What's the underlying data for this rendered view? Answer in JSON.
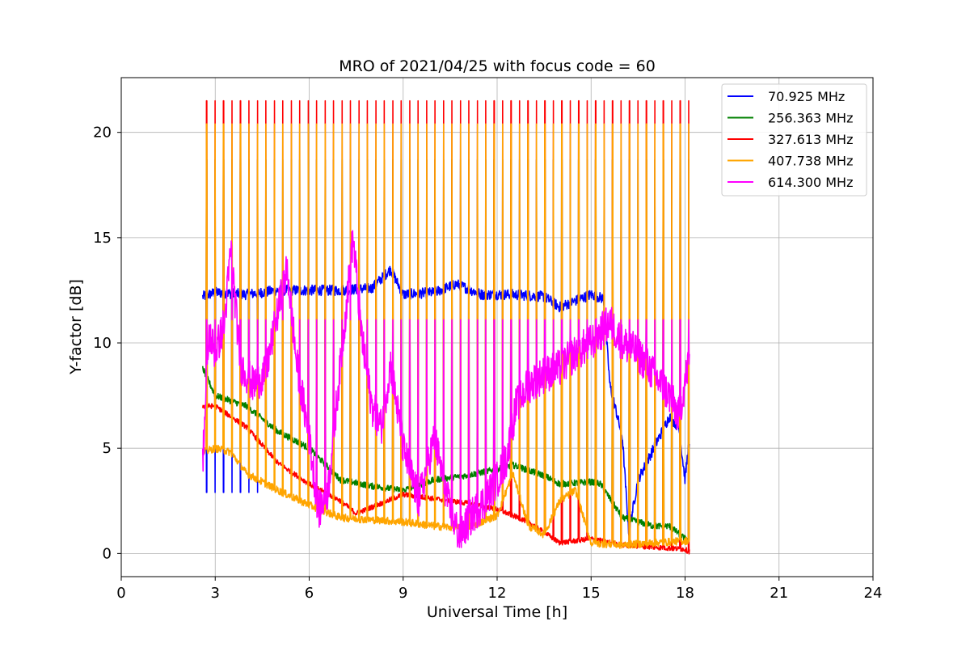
{
  "chart_data": {
    "type": "line",
    "title": "MRO of 2021/04/25 with focus code = 60",
    "xlabel": "Universal Time [h]",
    "ylabel": "Y-factor [dB]",
    "xlim": [
      0,
      24
    ],
    "ylim": [
      -1.1,
      22.6
    ],
    "xticks": [
      0,
      3,
      6,
      9,
      12,
      15,
      18,
      21,
      24
    ],
    "yticks": [
      0,
      5,
      10,
      15,
      20
    ],
    "grid": true,
    "legend_position": "top-right",
    "data_start_h": 2.6,
    "data_end_h": 18.15,
    "calibration_spike_period_h": 0.27,
    "series": [
      {
        "name": "70.925 MHz",
        "color": "#0000ff",
        "x": [
          2.6,
          3.0,
          4.0,
          5.0,
          6.0,
          7.0,
          8.0,
          8.6,
          9.0,
          10.0,
          10.7,
          11.5,
          12.5,
          13.5,
          14.0,
          15.0,
          15.4,
          15.6,
          16.0,
          16.2,
          16.5,
          17.0,
          17.5,
          17.8,
          18.0,
          18.1
        ],
        "values": [
          12.2,
          12.4,
          12.3,
          12.5,
          12.5,
          12.5,
          12.6,
          13.5,
          12.3,
          12.4,
          12.8,
          12.3,
          12.3,
          12.2,
          11.7,
          12.3,
          12.1,
          8.0,
          5.5,
          1.0,
          3.5,
          5.0,
          6.5,
          6.0,
          3.5,
          5.0
        ]
      },
      {
        "name": "256.363 MHz",
        "color": "#008000",
        "x": [
          2.6,
          3.0,
          4.0,
          5.0,
          6.0,
          7.0,
          8.0,
          9.0,
          10.0,
          11.0,
          12.0,
          12.5,
          13.5,
          14.0,
          15.0,
          15.3,
          16.0,
          17.0,
          17.5,
          18.0,
          18.1
        ],
        "values": [
          8.8,
          7.5,
          7.0,
          5.8,
          5.0,
          3.5,
          3.2,
          3.0,
          3.5,
          3.7,
          4.0,
          4.2,
          3.7,
          3.3,
          3.4,
          3.3,
          1.7,
          1.3,
          1.3,
          0.7,
          0.6
        ]
      },
      {
        "name": "327.613 MHz",
        "color": "#ff0000",
        "x": [
          2.6,
          3.0,
          4.0,
          5.0,
          6.0,
          7.0,
          7.5,
          8.0,
          9.0,
          10.0,
          11.0,
          12.0,
          13.0,
          14.0,
          15.0,
          16.0,
          17.0,
          18.0,
          18.1
        ],
        "values": [
          7.0,
          7.0,
          6.0,
          4.3,
          3.3,
          2.5,
          1.9,
          2.2,
          2.8,
          2.6,
          2.4,
          2.1,
          1.5,
          0.5,
          0.7,
          0.4,
          0.3,
          0.2,
          0.1
        ]
      },
      {
        "name": "407.738 MHz",
        "color": "#ffa500",
        "x": [
          2.6,
          3.0,
          3.5,
          4.0,
          5.0,
          6.0,
          6.5,
          7.0,
          8.0,
          9.0,
          10.0,
          11.0,
          12.0,
          12.5,
          13.0,
          13.5,
          14.0,
          14.5,
          15.0,
          16.0,
          17.0,
          18.0,
          18.1
        ],
        "values": [
          4.8,
          5.0,
          4.8,
          3.8,
          3.0,
          2.3,
          2.0,
          1.7,
          1.6,
          1.5,
          1.3,
          1.2,
          1.8,
          3.8,
          1.3,
          0.9,
          2.5,
          3.0,
          0.5,
          0.4,
          0.5,
          0.6,
          0.6
        ]
      },
      {
        "name": "614.300 MHz",
        "color": "#ff00ff",
        "x": [
          2.6,
          2.8,
          3.0,
          3.3,
          3.5,
          3.8,
          4.2,
          4.6,
          5.0,
          5.3,
          5.6,
          6.0,
          6.3,
          6.6,
          7.0,
          7.4,
          7.7,
          8.0,
          8.3,
          8.6,
          9.0,
          9.5,
          10.0,
          10.5,
          10.8,
          11.2,
          11.6,
          12.0,
          12.3,
          12.6,
          13.0,
          13.5,
          14.0,
          14.5,
          15.0,
          15.3,
          15.6,
          16.0,
          16.5,
          17.0,
          17.5,
          17.8,
          18.1
        ],
        "values": [
          4.4,
          10.5,
          9.5,
          11.0,
          14.5,
          9.0,
          8.0,
          8.5,
          11.5,
          13.5,
          9.0,
          5.5,
          2.0,
          3.0,
          9.0,
          15.0,
          10.0,
          7.0,
          6.0,
          9.0,
          5.0,
          2.5,
          5.5,
          2.0,
          0.8,
          1.8,
          2.5,
          3.5,
          4.5,
          7.0,
          8.0,
          8.5,
          8.8,
          9.5,
          10.0,
          10.5,
          11.0,
          10.0,
          9.5,
          8.5,
          7.5,
          6.5,
          9.0
        ]
      }
    ]
  }
}
